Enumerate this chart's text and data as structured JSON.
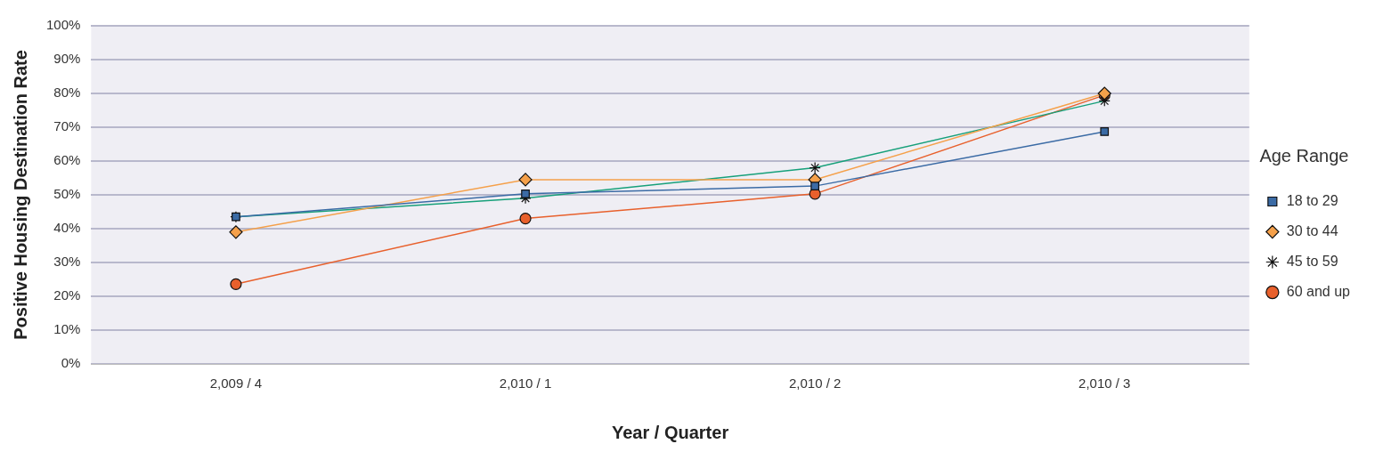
{
  "chart_data": {
    "type": "line",
    "xlabel": "Year / Quarter",
    "ylabel": "Positive Housing Destination Rate",
    "legend_title": "Age Range",
    "categories": [
      "2,009 / 4",
      "2,010 / 1",
      "2,010 / 2",
      "2,010 / 3"
    ],
    "series": [
      {
        "name": "18 to 29",
        "color": "#3b6ba5",
        "marker": "square",
        "values": [
          43.5,
          50.3,
          52.6,
          68.7
        ]
      },
      {
        "name": "30 to 44",
        "color": "#f5a04a",
        "marker": "diamond",
        "values": [
          39,
          54.5,
          54.5,
          80
        ]
      },
      {
        "name": "45 to 59",
        "color": "#17a07a",
        "marker": "cross",
        "values": [
          43.5,
          49,
          58,
          77.8
        ]
      },
      {
        "name": "60 and up",
        "color": "#e8602c",
        "marker": "circle",
        "values": [
          23.6,
          43,
          50.3,
          79.5
        ]
      }
    ],
    "ylim": [
      0,
      100
    ],
    "yticks": [
      {
        "value": 0,
        "label": "0%"
      },
      {
        "value": 10,
        "label": "10%"
      },
      {
        "value": 20,
        "label": "20%"
      },
      {
        "value": 30,
        "label": "30%"
      },
      {
        "value": 40,
        "label": "40%"
      },
      {
        "value": 50,
        "label": "50%"
      },
      {
        "value": 60,
        "label": "60%"
      },
      {
        "value": 70,
        "label": "70%"
      },
      {
        "value": 80,
        "label": "80%"
      },
      {
        "value": 90,
        "label": "90%"
      },
      {
        "value": 100,
        "label": "100%"
      }
    ],
    "grid": "y",
    "legend": "right"
  }
}
